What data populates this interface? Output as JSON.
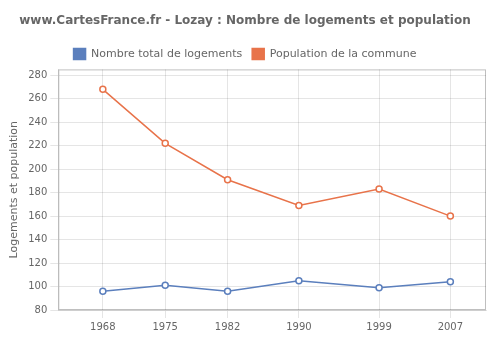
{
  "chart_data": {
    "type": "line",
    "title": "www.CartesFrance.fr - Lozay : Nombre de logements et population",
    "ylabel": "Logements et population",
    "x": [
      1968,
      1975,
      1982,
      1990,
      1999,
      2007
    ],
    "series": [
      {
        "name": "Nombre total de logements",
        "color": "#5b7fbd",
        "marker": "circle",
        "values": [
          96,
          101,
          96,
          105,
          99,
          104
        ]
      },
      {
        "name": "Population de la commune",
        "color": "#e8734a",
        "marker": "circle",
        "values": [
          268,
          222,
          191,
          169,
          183,
          160
        ]
      }
    ],
    "xlim": [
      1963,
      2011
    ],
    "xticks": [
      1968,
      1975,
      1982,
      1990,
      1999,
      2007
    ],
    "ylim": [
      80,
      285
    ],
    "yticks": [
      80,
      100,
      120,
      140,
      160,
      180,
      200,
      220,
      240,
      260,
      280
    ],
    "grid": true,
    "legend": "top"
  }
}
